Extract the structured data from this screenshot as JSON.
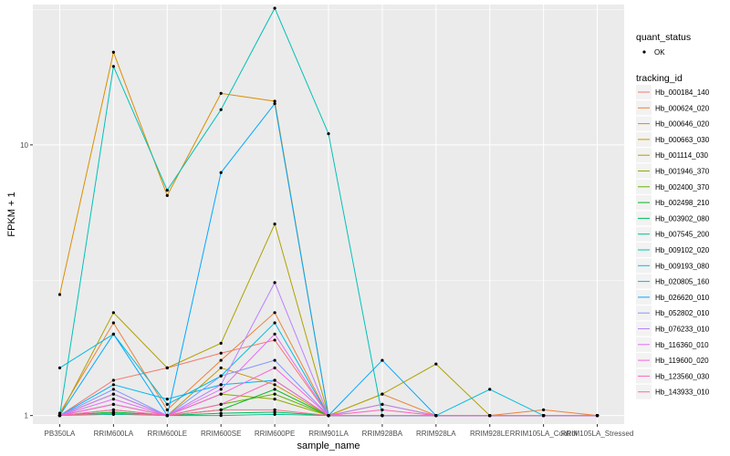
{
  "chart_data": {
    "type": "line",
    "title": "",
    "xlabel": "sample_name",
    "ylabel": "FPKM + 1",
    "y_scale": "log10",
    "ylim": [
      0.93,
      33
    ],
    "y_ticks": [
      {
        "value": 1,
        "label": "1"
      },
      {
        "value": 10,
        "label": "10"
      }
    ],
    "grid": true,
    "legend_position": "right",
    "categories": [
      "PB350LA",
      "RRIM600LA",
      "RRIM600LE",
      "RRIM600SE",
      "RRIM600PE",
      "RRIM901LA",
      "RRIM928BA",
      "RRIM928LA",
      "RRIM928LE",
      "RRIM105LA_Control",
      "RRIM105LA_Stressed"
    ],
    "quant_status_legend": {
      "title": "quant_status",
      "entries": [
        "OK"
      ]
    },
    "series_legend_title": "tracking_id",
    "series": [
      {
        "name": "Hb_000184_140",
        "color": "#F8766D",
        "values": [
          1.0,
          1.35,
          1.5,
          1.7,
          1.9,
          1.0,
          1.0,
          1.0,
          1.0,
          1.0,
          1.0
        ]
      },
      {
        "name": "Hb_000624_020",
        "color": "#EC8239",
        "values": [
          1.02,
          2.2,
          1.05,
          1.6,
          2.4,
          1.0,
          1.2,
          1.0,
          1.0,
          1.05,
          1.0
        ]
      },
      {
        "name": "Hb_000646_020",
        "color": "#DB8E00",
        "values": [
          2.8,
          22,
          6.5,
          15.5,
          14.5,
          1.0,
          1.0,
          1.0,
          1.0,
          1.0,
          1.0
        ]
      },
      {
        "name": "Hb_000663_030",
        "color": "#C79800",
        "values": [
          1.0,
          1.2,
          1.0,
          1.5,
          1.3,
          1.0,
          1.1,
          1.0,
          1.0,
          1.0,
          1.0
        ]
      },
      {
        "name": "Hb_001114_030",
        "color": "#AEA200",
        "values": [
          1.0,
          2.4,
          1.5,
          1.85,
          5.1,
          1.0,
          1.2,
          1.55,
          1.0,
          1.0,
          1.0
        ]
      },
      {
        "name": "Hb_001946_370",
        "color": "#8FAA00",
        "values": [
          1.0,
          1.1,
          1.0,
          1.2,
          1.15,
          1.0,
          1.0,
          1.0,
          1.0,
          1.0,
          1.0
        ]
      },
      {
        "name": "Hb_002400_370",
        "color": "#64B200",
        "values": [
          1.0,
          1.05,
          1.0,
          1.1,
          1.2,
          1.0,
          1.0,
          1.0,
          1.0,
          1.0,
          1.0
        ]
      },
      {
        "name": "Hb_002498_210",
        "color": "#00B81B",
        "values": [
          1.0,
          1.03,
          1.0,
          1.05,
          1.25,
          1.0,
          1.0,
          1.0,
          1.0,
          1.0,
          1.0
        ]
      },
      {
        "name": "Hb_003902_080",
        "color": "#00BD5C",
        "values": [
          1.0,
          1.02,
          1.0,
          1.02,
          1.03,
          1.0,
          1.0,
          1.0,
          1.0,
          1.0,
          1.0
        ]
      },
      {
        "name": "Hb_007545_200",
        "color": "#00C08E",
        "values": [
          1.0,
          1.01,
          1.0,
          1.0,
          1.01,
          1.0,
          1.0,
          1.0,
          1.0,
          1.0,
          1.0
        ]
      },
      {
        "name": "Hb_009102_020",
        "color": "#00C1B7",
        "values": [
          1.0,
          19.5,
          6.8,
          13.5,
          32,
          11.0,
          1.0,
          1.0,
          1.0,
          1.0,
          1.0
        ]
      },
      {
        "name": "Hb_009193_080",
        "color": "#00BDDC",
        "values": [
          1.5,
          2.0,
          1.1,
          1.4,
          2.2,
          1.0,
          1.0,
          1.0,
          1.25,
          1.0,
          1.0
        ]
      },
      {
        "name": "Hb_020805_160",
        "color": "#00B5F7",
        "values": [
          1.0,
          1.3,
          1.15,
          1.3,
          1.35,
          1.0,
          1.0,
          1.0,
          1.0,
          1.0,
          1.0
        ]
      },
      {
        "name": "Hb_026620_010",
        "color": "#00A9FF",
        "values": [
          1.0,
          2.0,
          1.0,
          7.9,
          14.2,
          1.0,
          1.6,
          1.0,
          1.0,
          1.0,
          1.0
        ]
      },
      {
        "name": "Hb_052802_010",
        "color": "#7F96FF",
        "values": [
          1.0,
          1.25,
          1.0,
          1.4,
          1.6,
          1.0,
          1.0,
          1.0,
          1.0,
          1.0,
          1.0
        ]
      },
      {
        "name": "Hb_076233_010",
        "color": "#BC81FF",
        "values": [
          1.0,
          1.2,
          1.0,
          1.3,
          3.1,
          1.0,
          1.1,
          1.0,
          1.0,
          1.0,
          1.0
        ]
      },
      {
        "name": "Hb_116360_010",
        "color": "#E26EF7",
        "values": [
          1.0,
          1.15,
          1.0,
          1.25,
          2.0,
          1.0,
          1.0,
          1.0,
          1.0,
          1.0,
          1.0
        ]
      },
      {
        "name": "Hb_119600_020",
        "color": "#F863DF",
        "values": [
          1.0,
          1.1,
          1.0,
          1.2,
          1.5,
          1.0,
          1.0,
          1.0,
          1.0,
          1.0,
          1.0
        ]
      },
      {
        "name": "Hb_123560_030",
        "color": "#FF62BC",
        "values": [
          1.0,
          1.05,
          1.0,
          1.1,
          1.35,
          1.0,
          1.05,
          1.0,
          1.0,
          1.0,
          1.0
        ]
      },
      {
        "name": "Hb_143933_010",
        "color": "#FF6C91",
        "values": [
          1.0,
          1.02,
          1.0,
          1.05,
          1.05,
          1.0,
          1.0,
          1.0,
          1.0,
          1.0,
          1.0
        ]
      }
    ]
  },
  "colors": {
    "panel_background": "#EBEBEB",
    "grid_major": "#FFFFFF",
    "point": "#000000"
  }
}
